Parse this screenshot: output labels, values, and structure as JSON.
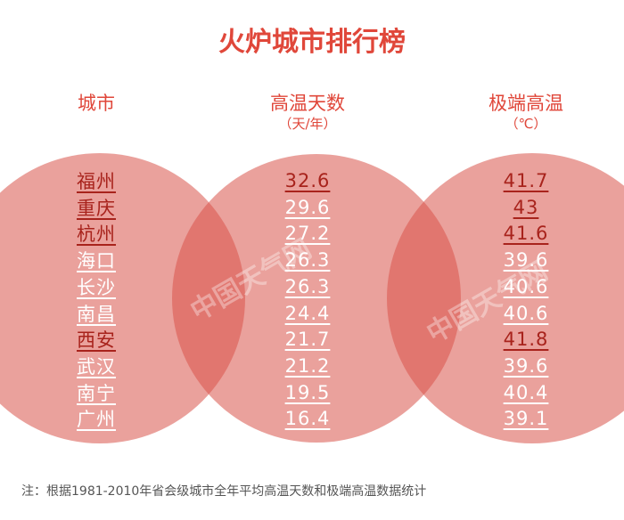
{
  "header": {
    "title": "火炉城市排行榜"
  },
  "table": {
    "columns": [
      {
        "label": "城市"
      },
      {
        "label": "高温天数",
        "unit": "（天/年）"
      },
      {
        "label": "极端高温",
        "unit": "（℃）"
      }
    ],
    "rows": [
      [
        "福州",
        "32.6",
        "41.7"
      ],
      [
        "重庆",
        "29.6",
        "43"
      ],
      [
        "杭州",
        "27.2",
        "41.6"
      ],
      [
        "海口",
        "26.3",
        "39.6"
      ],
      [
        "长沙",
        "26.3",
        "40.6"
      ],
      [
        "南昌",
        "24.4",
        "40.6"
      ],
      [
        "西安",
        "21.7",
        "41.8"
      ],
      [
        "武汉",
        "21.2",
        "39.6"
      ],
      [
        "南宁",
        "19.5",
        "40.4"
      ],
      [
        "广州",
        "16.4",
        "39.1"
      ]
    ]
  },
  "watermark": "中国天气网",
  "footnote": "注：根据1981-2010年省会级城市全年平均高温天数和极端高温数据统计"
}
